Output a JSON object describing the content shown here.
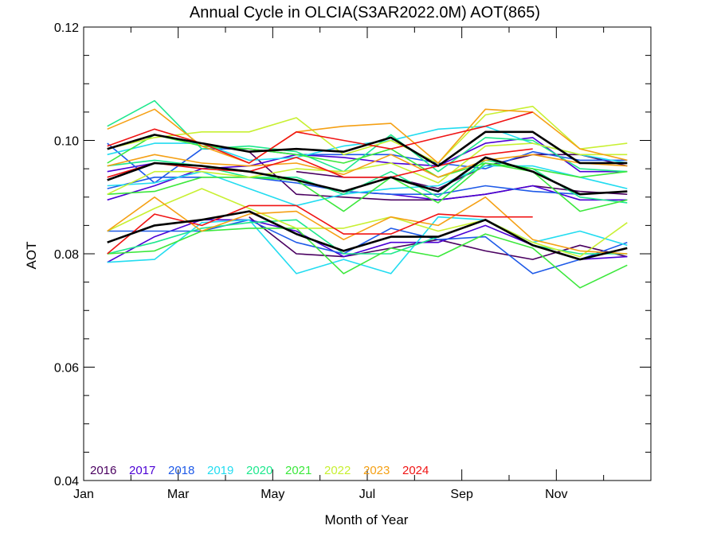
{
  "chart_data": {
    "type": "line",
    "title": "Annual Cycle in OLCIA(S3AR2022.0M) AOT(865)",
    "xlabel": "Month of Year",
    "ylabel": "AOT",
    "xlim": [
      1,
      13
    ],
    "ylim": [
      0.04,
      0.12
    ],
    "x_ticks": [
      {
        "value": 1,
        "label": "Jan"
      },
      {
        "value": 3,
        "label": "Mar"
      },
      {
        "value": 5,
        "label": "May"
      },
      {
        "value": 7,
        "label": "Jul"
      },
      {
        "value": 9,
        "label": "Sep"
      },
      {
        "value": 11,
        "label": "Nov"
      }
    ],
    "y_ticks": [
      {
        "value": 0.04,
        "label": "0.04"
      },
      {
        "value": 0.06,
        "label": "0.06"
      },
      {
        "value": 0.08,
        "label": "0.08"
      },
      {
        "value": 0.1,
        "label": "0.10"
      },
      {
        "value": 0.12,
        "label": "0.12"
      }
    ],
    "legend_position": "bottom-left",
    "x": [
      1.5,
      2.5,
      3.5,
      4.5,
      5.5,
      6.5,
      7.5,
      8.5,
      9.5,
      10.5,
      11.5,
      12.5
    ],
    "series": [
      {
        "name": "2016",
        "color": "#4a0060",
        "values": [
          [
            null,
            null,
            null,
            null,
            0.0945,
            0.0935,
            0.0935,
            0.0915,
            0.0955,
            0.0975,
            0.0975,
            0.0955
          ],
          [
            null,
            null,
            null,
            0.098,
            0.0905,
            0.09,
            0.0895,
            0.0895,
            0.0905,
            0.092,
            0.091,
            0.0905
          ],
          [
            null,
            null,
            null,
            0.0865,
            0.08,
            0.0795,
            0.081,
            0.0825,
            0.0805,
            0.079,
            0.0815,
            0.0795
          ]
        ]
      },
      {
        "name": "2017",
        "color": "#4b00d5",
        "values": [
          [
            0.0945,
            0.096,
            0.0955,
            0.0945,
            0.093,
            0.091,
            0.0905,
            0.0895,
            0.0905,
            0.092,
            0.0895,
            0.0895
          ],
          [
            0.0895,
            0.092,
            0.095,
            0.0955,
            0.0975,
            0.097,
            0.096,
            0.0955,
            0.0995,
            0.1005,
            0.0945,
            0.0945
          ],
          [
            0.0785,
            0.083,
            0.086,
            0.086,
            0.084,
            0.0795,
            0.082,
            0.082,
            0.085,
            0.0815,
            0.079,
            0.0795
          ]
        ]
      },
      {
        "name": "2018",
        "color": "#1e5ae8",
        "values": [
          [
            0.0995,
            0.0925,
            0.0985,
            0.0985,
            0.0975,
            0.0975,
            0.0975,
            0.096,
            0.095,
            0.098,
            0.0965,
            0.0965
          ],
          [
            0.0915,
            0.0935,
            0.0935,
            0.0935,
            0.0925,
            0.091,
            0.0905,
            0.0905,
            0.092,
            0.091,
            0.0905,
            0.091
          ],
          [
            0.084,
            0.084,
            0.084,
            0.086,
            0.082,
            0.08,
            0.0845,
            0.0825,
            0.083,
            0.0765,
            0.079,
            0.082
          ]
        ]
      },
      {
        "name": "2019",
        "color": "#22dcf0",
        "values": [
          [
            0.0975,
            0.0995,
            0.0995,
            0.0965,
            0.097,
            0.099,
            0.1,
            0.102,
            0.1025,
            0.0995,
            0.0975,
            0.096
          ],
          [
            0.092,
            0.0925,
            0.0945,
            0.0915,
            0.0885,
            0.0905,
            0.0915,
            0.092,
            0.0955,
            0.0955,
            0.0935,
            0.0915
          ],
          [
            0.0785,
            0.079,
            0.0855,
            0.086,
            0.0765,
            0.079,
            0.0765,
            0.0865,
            0.086,
            0.082,
            0.084,
            0.0815
          ]
        ]
      },
      {
        "name": "2020",
        "color": "#1ee88e",
        "values": [
          [
            0.1025,
            0.107,
            0.0985,
            0.099,
            0.098,
            0.0945,
            0.101,
            0.0945,
            0.1005,
            0.1,
            0.095,
            0.0945
          ],
          [
            0.0955,
            0.0965,
            0.0955,
            0.0935,
            0.0935,
            0.0905,
            0.0945,
            0.09,
            0.0965,
            0.095,
            0.09,
            0.089
          ],
          [
            0.08,
            0.082,
            0.0845,
            0.0855,
            0.086,
            0.08,
            0.08,
            0.083,
            0.086,
            0.0815,
            0.08,
            0.08
          ]
        ]
      },
      {
        "name": "2021",
        "color": "#3ce83c",
        "values": [
          [
            0.096,
            0.101,
            0.099,
            0.0985,
            0.0975,
            0.096,
            0.0985,
            0.0935,
            0.096,
            0.095,
            0.0935,
            0.0945
          ],
          [
            0.0905,
            0.091,
            0.0935,
            0.0935,
            0.093,
            0.0875,
            0.0935,
            0.089,
            0.096,
            0.0945,
            0.0875,
            0.0895
          ],
          [
            0.08,
            0.0805,
            0.084,
            0.0845,
            0.0845,
            0.0765,
            0.081,
            0.0795,
            0.0835,
            0.081,
            0.074,
            0.078
          ]
        ]
      },
      {
        "name": "2022",
        "color": "#c8f032",
        "values": [
          [
            0.0985,
            0.1005,
            0.1015,
            0.1015,
            0.104,
            0.0975,
            0.1,
            0.096,
            0.1045,
            0.106,
            0.0985,
            0.0995
          ],
          [
            0.0905,
            0.0945,
            0.0945,
            0.0935,
            0.095,
            0.0945,
            0.096,
            0.0925,
            0.099,
            0.0995,
            0.0975,
            0.0975
          ],
          [
            0.084,
            0.088,
            0.0915,
            0.088,
            0.0845,
            0.0845,
            0.0865,
            0.084,
            0.086,
            0.082,
            0.0795,
            0.0855
          ]
        ]
      },
      {
        "name": "2023",
        "color": "#f5a014",
        "values": [
          [
            0.102,
            0.1055,
            0.099,
            0.096,
            0.1015,
            0.1025,
            0.103,
            0.096,
            0.1055,
            0.105,
            0.0985,
            0.0965
          ],
          [
            0.0955,
            0.0975,
            0.096,
            0.0955,
            0.096,
            0.094,
            0.0975,
            0.0935,
            0.0965,
            0.0975,
            0.096,
            0.0955
          ],
          [
            0.084,
            0.09,
            0.084,
            0.087,
            0.0875,
            0.0825,
            0.0865,
            0.085,
            0.09,
            0.0825,
            0.0805,
            0.08
          ]
        ]
      },
      {
        "name": "2024",
        "color": "#f01414",
        "values": [
          [
            0.099,
            0.102,
            0.0995,
            0.096,
            0.1015,
            0.1,
            0.0985,
            0.1005,
            0.1025,
            0.105,
            null,
            null
          ],
          [
            0.0935,
            0.096,
            0.095,
            0.0945,
            0.097,
            0.0935,
            0.0935,
            0.0955,
            0.0975,
            0.0985,
            null,
            null
          ],
          [
            0.08,
            0.087,
            0.085,
            0.0885,
            0.0885,
            0.0835,
            0.0835,
            0.087,
            0.0865,
            0.0865,
            null,
            null
          ]
        ]
      },
      {
        "name": "",
        "color": "#000000",
        "values": [
          [
            0.0985,
            0.101,
            0.0995,
            0.098,
            0.0985,
            0.098,
            0.1005,
            0.0955,
            0.1015,
            0.1015,
            0.096,
            0.096
          ],
          [
            0.093,
            0.096,
            0.0955,
            0.0945,
            0.093,
            0.091,
            0.0935,
            0.091,
            0.097,
            0.0945,
            0.0905,
            0.091
          ],
          [
            0.082,
            0.085,
            0.086,
            0.0875,
            0.0835,
            0.0805,
            0.083,
            0.083,
            0.086,
            0.0815,
            0.079,
            0.081
          ]
        ]
      }
    ]
  }
}
